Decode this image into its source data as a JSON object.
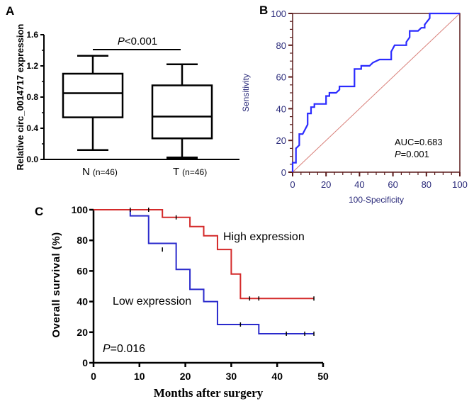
{
  "chart_data": [
    {
      "panel": "A",
      "type": "box",
      "title": "",
      "ylabel": "Relative circ_0014717 expression",
      "xlabel": "",
      "ylim": [
        0,
        1.6
      ],
      "yticks": [
        "0.0",
        "0.4",
        "0.8",
        "1.2",
        "1.6"
      ],
      "ytick_values": [
        0,
        0.4,
        0.8,
        1.2,
        1.6
      ],
      "categories": [
        {
          "label": "N",
          "n_label": "(n=46)",
          "min": 0.12,
          "q1": 0.54,
          "median": 0.85,
          "q3": 1.1,
          "max": 1.33
        },
        {
          "label": "T",
          "n_label": "(n=46)",
          "min": 0.02,
          "q1": 0.27,
          "median": 0.55,
          "q3": 0.95,
          "max": 1.22
        }
      ],
      "annotation": {
        "p_symbol": "P",
        "p_text": "<0.001"
      }
    },
    {
      "panel": "B",
      "type": "line",
      "subtype": "roc",
      "xlabel": "100-Specificity",
      "ylabel": "Sensitivity",
      "xlim": [
        0,
        100
      ],
      "ylim": [
        0,
        100
      ],
      "xticks": [
        "0",
        "20",
        "40",
        "60",
        "80",
        "100"
      ],
      "yticks": [
        "0",
        "20",
        "40",
        "60",
        "80",
        "100"
      ],
      "tick_values": [
        0,
        20,
        40,
        60,
        80,
        100
      ],
      "colors": {
        "curve": "#2b2bff",
        "reference": "#d9807a",
        "axis": "#5a1a1a",
        "tick_text": "#2a2a7a"
      },
      "series": [
        {
          "name": "ROC",
          "x": [
            0,
            0,
            2,
            2,
            4,
            4,
            6,
            7,
            9,
            9,
            11,
            11,
            13,
            13,
            20,
            20,
            22,
            22,
            26,
            28,
            28,
            37,
            37,
            41,
            41,
            46,
            48,
            52,
            59,
            59,
            61,
            61,
            68,
            68,
            70,
            70,
            75,
            77,
            79,
            79,
            82,
            82,
            100
          ],
          "y": [
            0,
            6,
            6,
            15,
            17,
            24,
            24,
            26,
            30,
            37,
            37,
            41,
            41,
            43,
            43,
            48,
            48,
            50,
            50,
            52,
            54,
            54,
            65,
            65,
            67,
            67,
            69,
            71,
            71,
            76,
            80,
            80,
            80,
            82,
            85,
            89,
            89,
            91,
            91,
            93,
            97,
            100,
            100
          ]
        },
        {
          "name": "Reference",
          "x": [
            0,
            100
          ],
          "y": [
            0,
            100
          ]
        }
      ],
      "annotations": {
        "auc": "AUC=0.683",
        "p_symbol": "P",
        "p_text": "=0.001"
      }
    },
    {
      "panel": "C",
      "type": "line",
      "subtype": "kaplan-meier",
      "xlabel": "Months after surgery",
      "ylabel": "Overall survival (%)",
      "xlim": [
        0,
        50
      ],
      "ylim": [
        0,
        100
      ],
      "xticks": [
        "0",
        "10",
        "20",
        "30",
        "40",
        "50"
      ],
      "xtick_values": [
        0,
        10,
        20,
        30,
        40,
        50
      ],
      "yticks": [
        "0",
        "20",
        "40",
        "60",
        "80",
        "100"
      ],
      "ytick_values": [
        0,
        20,
        40,
        60,
        80,
        100
      ],
      "series": [
        {
          "name": "High expression",
          "color": "#d42a2a",
          "steps": [
            [
              0,
              100
            ],
            [
              15,
              95
            ],
            [
              21,
              89
            ],
            [
              24,
              83
            ],
            [
              27,
              74
            ],
            [
              30,
              58
            ],
            [
              32,
              42
            ]
          ],
          "end_x": 48,
          "censored": [
            [
              8,
              100
            ],
            [
              12,
              100
            ],
            [
              18,
              95
            ],
            [
              34,
              42
            ],
            [
              36,
              42
            ],
            [
              48,
              42
            ]
          ]
        },
        {
          "name": "Low expression",
          "color": "#2a2acc",
          "steps": [
            [
              0,
              100
            ],
            [
              8,
              96
            ],
            [
              12,
              78
            ],
            [
              18,
              61
            ],
            [
              21,
              48
            ],
            [
              24,
              40
            ],
            [
              27,
              25
            ],
            [
              36,
              19
            ]
          ],
          "end_x": 48,
          "censored": [
            [
              15,
              74
            ],
            [
              32,
              25
            ],
            [
              42,
              19
            ],
            [
              46,
              19
            ],
            [
              48,
              19
            ]
          ]
        }
      ],
      "annotations": {
        "p_symbol": "P",
        "p_text": "=0.016"
      }
    }
  ],
  "panels": {
    "a": "A",
    "b": "B",
    "c": "C"
  }
}
